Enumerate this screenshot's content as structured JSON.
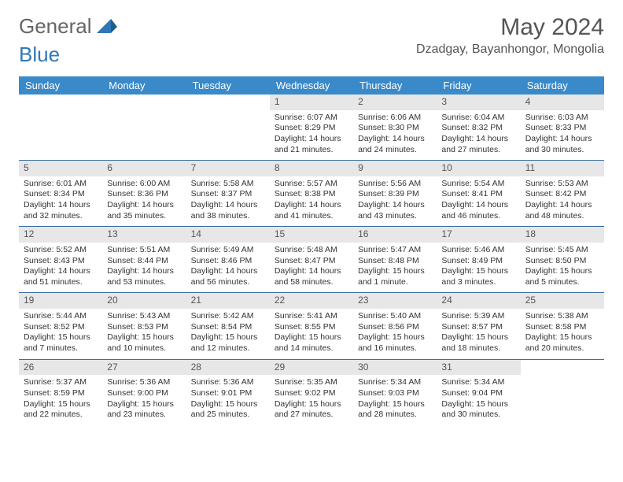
{
  "logo": {
    "text_general": "General",
    "text_blue": "Blue"
  },
  "header": {
    "month_title": "May 2024",
    "location": "Dzadgay, Bayanhongor, Mongolia"
  },
  "colors": {
    "header_bg": "#3a8ac9",
    "header_text": "#ffffff",
    "daynum_bg": "#e7e7e7",
    "row_sep": "#3a6ea5",
    "logo_blue": "#2f78b7"
  },
  "daysOfWeek": [
    "Sunday",
    "Monday",
    "Tuesday",
    "Wednesday",
    "Thursday",
    "Friday",
    "Saturday"
  ],
  "weeks": [
    [
      null,
      null,
      null,
      {
        "n": "1",
        "sr": "6:07 AM",
        "ss": "8:29 PM",
        "dl1": "14 hours",
        "dl2": "and 21 minutes."
      },
      {
        "n": "2",
        "sr": "6:06 AM",
        "ss": "8:30 PM",
        "dl1": "14 hours",
        "dl2": "and 24 minutes."
      },
      {
        "n": "3",
        "sr": "6:04 AM",
        "ss": "8:32 PM",
        "dl1": "14 hours",
        "dl2": "and 27 minutes."
      },
      {
        "n": "4",
        "sr": "6:03 AM",
        "ss": "8:33 PM",
        "dl1": "14 hours",
        "dl2": "and 30 minutes."
      }
    ],
    [
      {
        "n": "5",
        "sr": "6:01 AM",
        "ss": "8:34 PM",
        "dl1": "14 hours",
        "dl2": "and 32 minutes."
      },
      {
        "n": "6",
        "sr": "6:00 AM",
        "ss": "8:36 PM",
        "dl1": "14 hours",
        "dl2": "and 35 minutes."
      },
      {
        "n": "7",
        "sr": "5:58 AM",
        "ss": "8:37 PM",
        "dl1": "14 hours",
        "dl2": "and 38 minutes."
      },
      {
        "n": "8",
        "sr": "5:57 AM",
        "ss": "8:38 PM",
        "dl1": "14 hours",
        "dl2": "and 41 minutes."
      },
      {
        "n": "9",
        "sr": "5:56 AM",
        "ss": "8:39 PM",
        "dl1": "14 hours",
        "dl2": "and 43 minutes."
      },
      {
        "n": "10",
        "sr": "5:54 AM",
        "ss": "8:41 PM",
        "dl1": "14 hours",
        "dl2": "and 46 minutes."
      },
      {
        "n": "11",
        "sr": "5:53 AM",
        "ss": "8:42 PM",
        "dl1": "14 hours",
        "dl2": "and 48 minutes."
      }
    ],
    [
      {
        "n": "12",
        "sr": "5:52 AM",
        "ss": "8:43 PM",
        "dl1": "14 hours",
        "dl2": "and 51 minutes."
      },
      {
        "n": "13",
        "sr": "5:51 AM",
        "ss": "8:44 PM",
        "dl1": "14 hours",
        "dl2": "and 53 minutes."
      },
      {
        "n": "14",
        "sr": "5:49 AM",
        "ss": "8:46 PM",
        "dl1": "14 hours",
        "dl2": "and 56 minutes."
      },
      {
        "n": "15",
        "sr": "5:48 AM",
        "ss": "8:47 PM",
        "dl1": "14 hours",
        "dl2": "and 58 minutes."
      },
      {
        "n": "16",
        "sr": "5:47 AM",
        "ss": "8:48 PM",
        "dl1": "15 hours",
        "dl2": "and 1 minute."
      },
      {
        "n": "17",
        "sr": "5:46 AM",
        "ss": "8:49 PM",
        "dl1": "15 hours",
        "dl2": "and 3 minutes."
      },
      {
        "n": "18",
        "sr": "5:45 AM",
        "ss": "8:50 PM",
        "dl1": "15 hours",
        "dl2": "and 5 minutes."
      }
    ],
    [
      {
        "n": "19",
        "sr": "5:44 AM",
        "ss": "8:52 PM",
        "dl1": "15 hours",
        "dl2": "and 7 minutes."
      },
      {
        "n": "20",
        "sr": "5:43 AM",
        "ss": "8:53 PM",
        "dl1": "15 hours",
        "dl2": "and 10 minutes."
      },
      {
        "n": "21",
        "sr": "5:42 AM",
        "ss": "8:54 PM",
        "dl1": "15 hours",
        "dl2": "and 12 minutes."
      },
      {
        "n": "22",
        "sr": "5:41 AM",
        "ss": "8:55 PM",
        "dl1": "15 hours",
        "dl2": "and 14 minutes."
      },
      {
        "n": "23",
        "sr": "5:40 AM",
        "ss": "8:56 PM",
        "dl1": "15 hours",
        "dl2": "and 16 minutes."
      },
      {
        "n": "24",
        "sr": "5:39 AM",
        "ss": "8:57 PM",
        "dl1": "15 hours",
        "dl2": "and 18 minutes."
      },
      {
        "n": "25",
        "sr": "5:38 AM",
        "ss": "8:58 PM",
        "dl1": "15 hours",
        "dl2": "and 20 minutes."
      }
    ],
    [
      {
        "n": "26",
        "sr": "5:37 AM",
        "ss": "8:59 PM",
        "dl1": "15 hours",
        "dl2": "and 22 minutes."
      },
      {
        "n": "27",
        "sr": "5:36 AM",
        "ss": "9:00 PM",
        "dl1": "15 hours",
        "dl2": "and 23 minutes."
      },
      {
        "n": "28",
        "sr": "5:36 AM",
        "ss": "9:01 PM",
        "dl1": "15 hours",
        "dl2": "and 25 minutes."
      },
      {
        "n": "29",
        "sr": "5:35 AM",
        "ss": "9:02 PM",
        "dl1": "15 hours",
        "dl2": "and 27 minutes."
      },
      {
        "n": "30",
        "sr": "5:34 AM",
        "ss": "9:03 PM",
        "dl1": "15 hours",
        "dl2": "and 28 minutes."
      },
      {
        "n": "31",
        "sr": "5:34 AM",
        "ss": "9:04 PM",
        "dl1": "15 hours",
        "dl2": "and 30 minutes."
      },
      null
    ]
  ],
  "labels": {
    "sunrise": "Sunrise:",
    "sunset": "Sunset:",
    "daylight": "Daylight:"
  }
}
